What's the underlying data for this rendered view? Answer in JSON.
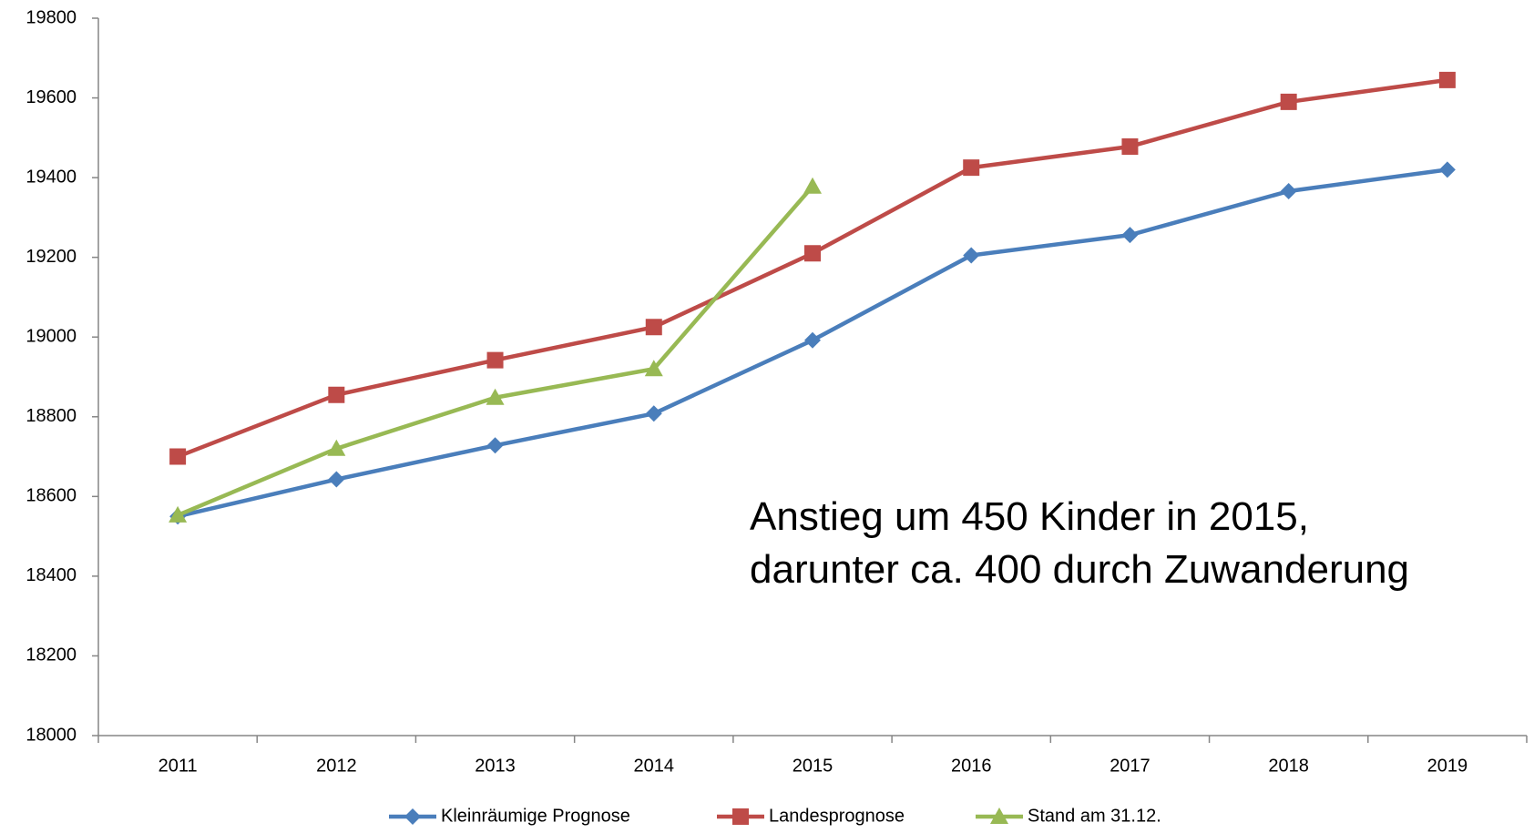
{
  "chart_data": {
    "type": "line",
    "categories": [
      "2011",
      "2012",
      "2013",
      "2014",
      "2015",
      "2016",
      "2017",
      "2018",
      "2019"
    ],
    "series": [
      {
        "name": "Kleinräumige Prognose",
        "color": "#4a7ebb",
        "marker": "diamond",
        "values": [
          18550,
          18643,
          18728,
          18808,
          18992,
          19205,
          19256,
          19366,
          19420
        ]
      },
      {
        "name": "Landesprognose",
        "color": "#be4b48",
        "marker": "square",
        "values": [
          18700,
          18855,
          18942,
          19025,
          19210,
          19425,
          19478,
          19590,
          19645
        ]
      },
      {
        "name": "Stand am 31.12.",
        "color": "#98b954",
        "marker": "triangle",
        "values": [
          18553,
          18720,
          18848,
          18920,
          19378,
          null,
          null,
          null,
          null
        ]
      }
    ],
    "ylim": [
      18000,
      19800
    ],
    "yticks": [
      18000,
      18200,
      18400,
      18600,
      18800,
      19000,
      19200,
      19400,
      19600,
      19800
    ],
    "annotation": [
      "Anstieg um 450 Kinder in 2015,",
      "darunter ca. 400 durch Zuwanderung"
    ],
    "legend": "bottom",
    "grid": false
  }
}
